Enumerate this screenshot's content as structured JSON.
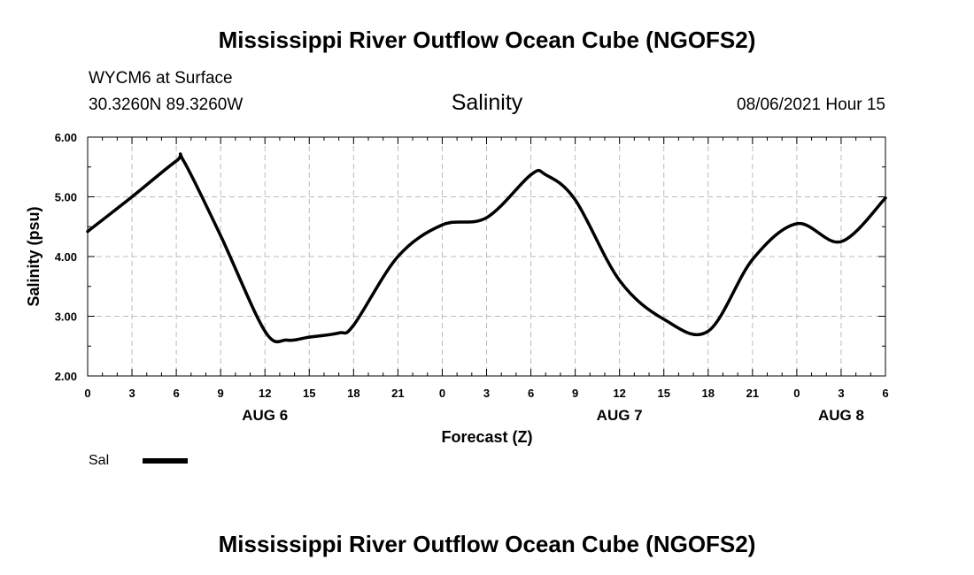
{
  "header": {
    "title": "Mississippi River Outflow Ocean Cube (NGOFS2)",
    "station": "WYCM6 at Surface",
    "coords": "30.3260N  89.3260W",
    "variable": "Salinity",
    "timestamp": "08/06/2021 Hour 15"
  },
  "footer": {
    "title": "Mississippi River Outflow Ocean Cube (NGOFS2)"
  },
  "legend": {
    "label": "Sal"
  },
  "chart_data": {
    "type": "line",
    "title": "Salinity",
    "xlabel": "Forecast (Z)",
    "ylabel": "Salinity (psu)",
    "xlim": [
      0,
      54
    ],
    "ylim": [
      2.0,
      6.0
    ],
    "grid": true,
    "x_tick_values": [
      0,
      3,
      6,
      9,
      12,
      15,
      18,
      21,
      24,
      27,
      30,
      33,
      36,
      39,
      42,
      45,
      48,
      51,
      54
    ],
    "x_tick_labels": [
      "0",
      "3",
      "6",
      "9",
      "12",
      "15",
      "18",
      "21",
      "0",
      "3",
      "6",
      "9",
      "12",
      "15",
      "18",
      "21",
      "0",
      "3",
      "6"
    ],
    "y_tick_values": [
      2.0,
      3.0,
      4.0,
      5.0,
      6.0
    ],
    "y_tick_labels": [
      "2.00",
      "3.00",
      "4.00",
      "5.00",
      "6.00"
    ],
    "date_labels": [
      {
        "label": "AUG 6",
        "x": 12
      },
      {
        "label": "AUG 7",
        "x": 36
      },
      {
        "label": "AUG 8",
        "x": 51
      }
    ],
    "series": [
      {
        "name": "Sal",
        "x": [
          0,
          3,
          6,
          6.5,
          9,
          12,
          13.5,
          15,
          17,
          18,
          21,
          24,
          27,
          30,
          31,
          33,
          36,
          39,
          42,
          45,
          48,
          51,
          54
        ],
        "values": [
          4.42,
          5.0,
          5.6,
          5.6,
          4.35,
          2.75,
          2.6,
          2.65,
          2.72,
          2.85,
          4.0,
          4.53,
          4.65,
          5.37,
          5.37,
          4.95,
          3.6,
          2.95,
          2.75,
          3.95,
          4.55,
          4.25,
          4.98
        ]
      }
    ]
  }
}
